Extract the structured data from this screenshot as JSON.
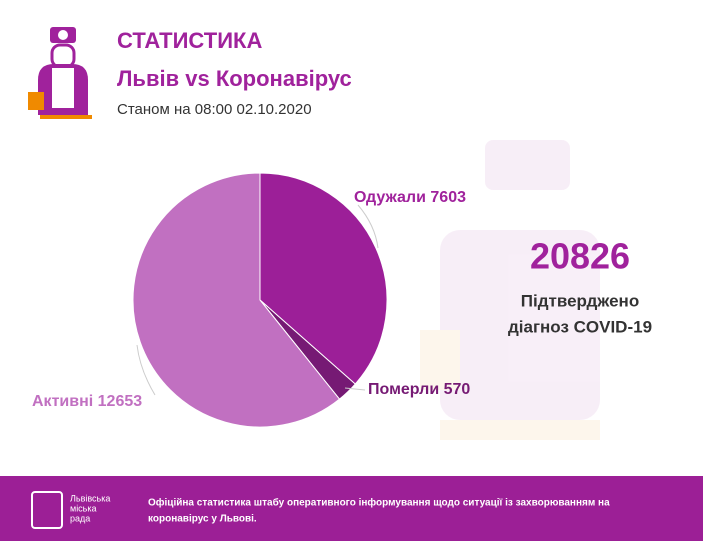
{
  "chart_data": {
    "type": "pie",
    "title": "СТАТИСТИКА",
    "subtitle": "Львів vs Коронавірус",
    "date": "Станом на 08:00 02.10.2020",
    "categories": [
      "Одужали",
      "Померли",
      "Активні"
    ],
    "values": [
      7603,
      570,
      12653
    ],
    "colors": [
      "#9c1f98",
      "#761a74",
      "#c170c1"
    ]
  },
  "summary": {
    "total": 20826,
    "label": [
      "Підтверджено",
      "діагноз COVID-19"
    ]
  },
  "footer": {
    "logo": [
      "Львівська",
      "міська",
      "рада"
    ],
    "text": [
      "Офіційна статистика штабу оперативного інформування щодо ситуації із захворюванням на",
      "коронавірус у Львові."
    ]
  }
}
